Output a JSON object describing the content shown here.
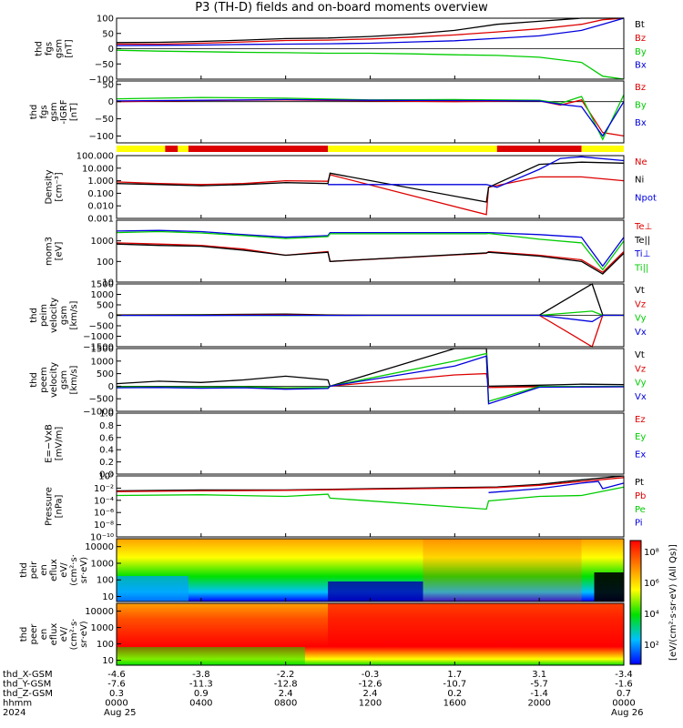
{
  "title": "P3 (TH-D) fields and on-board moments overview",
  "colors": {
    "black": "#000000",
    "red": "#dd0000",
    "green": "#00cc00",
    "blue": "#0000dd",
    "yellow": "#ffff00"
  },
  "chart_data": [
    {
      "type": "line",
      "ylabel": [
        "thd",
        "fgs",
        "gsm",
        "[nT]"
      ],
      "ylim": [
        -100,
        100
      ],
      "yticks": [
        "100",
        "50",
        "0",
        "−50",
        "−100"
      ],
      "legend": [
        {
          "label": "Bt",
          "color": "black"
        },
        {
          "label": "Bz",
          "color": "red"
        },
        {
          "label": "By",
          "color": "green"
        },
        {
          "label": "Bx",
          "color": "blue"
        }
      ],
      "series": [
        {
          "name": "Bt",
          "x": [
            0,
            2,
            4,
            6,
            8,
            10,
            12,
            14,
            16,
            18,
            20,
            22,
            23,
            24
          ],
          "values": [
            20,
            21,
            24,
            28,
            33,
            35,
            40,
            48,
            60,
            80,
            90,
            100,
            100,
            100
          ]
        },
        {
          "name": "Bz",
          "x": [
            0,
            2,
            4,
            6,
            8,
            10,
            12,
            14,
            16,
            18,
            20,
            22,
            23,
            24
          ],
          "values": [
            15,
            15,
            18,
            22,
            27,
            28,
            32,
            38,
            45,
            55,
            65,
            80,
            95,
            100
          ]
        },
        {
          "name": "By",
          "x": [
            0,
            2,
            4,
            6,
            8,
            10,
            12,
            14,
            16,
            18,
            20,
            22,
            23,
            24
          ],
          "values": [
            -5,
            -8,
            -10,
            -12,
            -13,
            -15,
            -15,
            -17,
            -20,
            -22,
            -28,
            -45,
            -90,
            -100
          ]
        },
        {
          "name": "Bx",
          "x": [
            0,
            2,
            4,
            6,
            8,
            10,
            12,
            14,
            16,
            18,
            20,
            22,
            23,
            24
          ],
          "values": [
            10,
            11,
            12,
            14,
            15,
            16,
            18,
            22,
            26,
            34,
            42,
            60,
            80,
            100
          ]
        }
      ]
    },
    {
      "type": "line",
      "ylabel": [
        "thd",
        "fgs",
        "gsm",
        "-IGRF",
        "[nT]"
      ],
      "ylim": [
        -120,
        60
      ],
      "yticks": [
        "50",
        "0",
        "−50",
        "−100"
      ],
      "legend": [
        {
          "label": "Bz",
          "color": "red"
        },
        {
          "label": "By",
          "color": "green"
        },
        {
          "label": "Bx",
          "color": "blue"
        }
      ],
      "series": [
        {
          "name": "Bz",
          "x": [
            0,
            4,
            8,
            12,
            16,
            20,
            21,
            22,
            23,
            24
          ],
          "values": [
            0,
            3,
            5,
            2,
            0,
            2,
            -10,
            5,
            -90,
            -100
          ]
        },
        {
          "name": "By",
          "x": [
            0,
            4,
            8,
            12,
            16,
            20,
            21,
            22,
            23,
            24
          ],
          "values": [
            8,
            12,
            10,
            5,
            6,
            4,
            -5,
            15,
            -110,
            20
          ]
        },
        {
          "name": "Bx",
          "x": [
            0,
            4,
            8,
            12,
            16,
            20,
            21,
            22,
            23,
            24
          ],
          "values": [
            2,
            4,
            6,
            4,
            3,
            2,
            -8,
            -15,
            -100,
            0
          ]
        }
      ]
    },
    {
      "type": "line",
      "ylabel": [
        "Density",
        "[cm⁻³]"
      ],
      "yscale": "log",
      "ylim": [
        0.001,
        100
      ],
      "yticks": [
        "100.000",
        "10.000",
        "1.000",
        "0.100",
        "0.010",
        "0.001"
      ],
      "legend": [
        {
          "label": "Ne",
          "color": "red"
        },
        {
          "label": "Ni",
          "color": "black"
        },
        {
          "label": "Npot",
          "color": "blue"
        }
      ],
      "series": [
        {
          "name": "Ne",
          "x": [
            0,
            2,
            4,
            6,
            8,
            10,
            10.1,
            17.5,
            17.6,
            20,
            22,
            24
          ],
          "values": [
            0.8,
            0.6,
            0.5,
            0.6,
            1.0,
            0.9,
            3,
            0.002,
            0.3,
            2,
            2,
            1
          ]
        },
        {
          "name": "Ni",
          "x": [
            0,
            2,
            4,
            6,
            8,
            10,
            10.1,
            17.5,
            17.6,
            20,
            22,
            24
          ],
          "values": [
            0.6,
            0.5,
            0.4,
            0.5,
            0.7,
            0.6,
            4,
            0.02,
            0.3,
            20,
            30,
            25
          ]
        },
        {
          "name": "Npot",
          "x": [
            10,
            17.5,
            18,
            20,
            21,
            22,
            24
          ],
          "values": [
            0.5,
            0.5,
            0.3,
            8,
            60,
            80,
            40
          ]
        }
      ]
    },
    {
      "type": "line",
      "ylabel": [
        "mom3",
        "[eV]"
      ],
      "yscale": "log",
      "ylim": [
        10,
        10000
      ],
      "yticks": [
        "1000",
        "100",
        "10"
      ],
      "legend": [
        {
          "label": "Te⊥",
          "color": "red"
        },
        {
          "label": "Te||",
          "color": "black"
        },
        {
          "label": "Ti⊥",
          "color": "blue"
        },
        {
          "label": "Ti||",
          "color": "green"
        }
      ],
      "series": [
        {
          "name": "Te⊥",
          "x": [
            0,
            2,
            4,
            6,
            8,
            10,
            10.1,
            17.5,
            17.6,
            20,
            22,
            23,
            24
          ],
          "values": [
            800,
            700,
            600,
            400,
            200,
            300,
            100,
            250,
            300,
            200,
            120,
            30,
            300
          ]
        },
        {
          "name": "Te||",
          "x": [
            0,
            2,
            4,
            6,
            8,
            10,
            10.1,
            17.5,
            17.6,
            20,
            22,
            23,
            24
          ],
          "values": [
            700,
            600,
            550,
            350,
            200,
            280,
            100,
            260,
            280,
            180,
            100,
            25,
            250
          ]
        },
        {
          "name": "Ti⊥",
          "x": [
            0,
            2,
            4,
            6,
            8,
            10,
            10.1,
            17.5,
            17.6,
            20,
            22,
            23,
            24
          ],
          "values": [
            3000,
            3200,
            2800,
            2000,
            1500,
            1800,
            2500,
            2500,
            2500,
            2000,
            1500,
            60,
            1500
          ]
        },
        {
          "name": "Ti||",
          "x": [
            0,
            2,
            4,
            6,
            8,
            10,
            10.1,
            17.5,
            17.6,
            20,
            22,
            23,
            24
          ],
          "values": [
            2500,
            2800,
            2400,
            1800,
            1300,
            1600,
            2200,
            2200,
            2300,
            1200,
            800,
            40,
            1000
          ]
        }
      ]
    },
    {
      "type": "line",
      "ylabel": [
        "thd",
        "peim",
        "velocity",
        "gsm",
        "[km/s]"
      ],
      "ylim": [
        -1500,
        1500
      ],
      "yticks": [
        "1500",
        "1000",
        "500",
        "0",
        "−500",
        "−1000",
        "−1500"
      ],
      "legend": [
        {
          "label": "Vt",
          "color": "black"
        },
        {
          "label": "Vz",
          "color": "red"
        },
        {
          "label": "Vy",
          "color": "green"
        },
        {
          "label": "Vx",
          "color": "blue"
        }
      ],
      "series": [
        {
          "name": "Vt",
          "x": [
            0,
            4,
            8,
            10,
            12,
            16,
            20,
            22.5,
            23,
            24
          ],
          "values": [
            20,
            30,
            60,
            20,
            10,
            10,
            10,
            1500,
            20,
            10
          ]
        },
        {
          "name": "Vz",
          "x": [
            0,
            4,
            8,
            10,
            12,
            16,
            20,
            22.5,
            23,
            24
          ],
          "values": [
            5,
            10,
            20,
            5,
            0,
            0,
            0,
            -1500,
            0,
            0
          ]
        },
        {
          "name": "Vy",
          "x": [
            0,
            4,
            8,
            10,
            12,
            16,
            20,
            22.5,
            23,
            24
          ],
          "values": [
            0,
            5,
            -10,
            0,
            0,
            0,
            0,
            200,
            0,
            0
          ]
        },
        {
          "name": "Vx",
          "x": [
            0,
            4,
            8,
            10,
            12,
            16,
            20,
            22.5,
            23,
            24
          ],
          "values": [
            -5,
            -10,
            0,
            -5,
            0,
            0,
            0,
            -300,
            0,
            0
          ]
        }
      ]
    },
    {
      "type": "line",
      "ylabel": [
        "thd",
        "peem",
        "velocity",
        "gsm",
        "[km/s]"
      ],
      "ylim": [
        -1000,
        1500
      ],
      "yticks": [
        "1500",
        "1000",
        "500",
        "0",
        "−500",
        "−1000"
      ],
      "legend": [
        {
          "label": "Vt",
          "color": "black"
        },
        {
          "label": "Vz",
          "color": "red"
        },
        {
          "label": "Vy",
          "color": "green"
        },
        {
          "label": "Vx",
          "color": "blue"
        }
      ],
      "series": [
        {
          "name": "Vt",
          "x": [
            0,
            2,
            4,
            6,
            8,
            10,
            10.1,
            16,
            17.5,
            17.6,
            20,
            22,
            24
          ],
          "values": [
            100,
            200,
            150,
            250,
            400,
            250,
            0,
            1500,
            1500,
            0,
            40,
            80,
            60
          ]
        },
        {
          "name": "Vz",
          "x": [
            0,
            2,
            4,
            6,
            8,
            10,
            10.1,
            16,
            17.5,
            17.6,
            20,
            22,
            24
          ],
          "values": [
            -50,
            -40,
            -60,
            -50,
            -100,
            -80,
            0,
            450,
            500,
            -50,
            -20,
            -30,
            -20
          ]
        },
        {
          "name": "Vy",
          "x": [
            0,
            2,
            4,
            6,
            8,
            10,
            10.1,
            16,
            17.5,
            17.6,
            20,
            22,
            24
          ],
          "values": [
            -20,
            -30,
            -40,
            -20,
            -60,
            -50,
            0,
            1000,
            1300,
            -600,
            -10,
            -10,
            -10
          ]
        },
        {
          "name": "Vx",
          "x": [
            0,
            2,
            4,
            6,
            8,
            10,
            10.1,
            16,
            17.5,
            17.6,
            20,
            22,
            24
          ],
          "values": [
            -60,
            -50,
            -80,
            -60,
            -120,
            -90,
            0,
            800,
            1200,
            -700,
            -40,
            -30,
            -20
          ]
        }
      ]
    },
    {
      "type": "line",
      "ylabel": [
        "E=−VxB",
        "[mV/m]"
      ],
      "ylim": [
        0,
        1
      ],
      "yticks": [
        "1.0",
        "0.8",
        "0.6",
        "0.4",
        "0.2",
        "0.0"
      ],
      "legend": [
        {
          "label": "Ez",
          "color": "red"
        },
        {
          "label": "Ey",
          "color": "green"
        },
        {
          "label": "Ex",
          "color": "blue"
        }
      ],
      "series": []
    },
    {
      "type": "line",
      "ylabel": [
        "Pressure",
        "[nPa]"
      ],
      "yscale": "log",
      "ylim": [
        1e-10,
        10
      ],
      "yticks": [
        "10⁰",
        "10⁻²",
        "10⁻⁴",
        "10⁻⁶",
        "10⁻⁸",
        "10⁻¹⁰"
      ],
      "legend": [
        {
          "label": "Pt",
          "color": "black"
        },
        {
          "label": "Pb",
          "color": "red"
        },
        {
          "label": "Pe",
          "color": "green"
        },
        {
          "label": "Pi",
          "color": "blue"
        }
      ],
      "series": [
        {
          "name": "Pt",
          "x": [
            0,
            4,
            8,
            12,
            16,
            18,
            20,
            22,
            24
          ],
          "values": [
            0.02,
            0.03,
            0.03,
            0.05,
            0.08,
            0.1,
            0.3,
            2,
            10
          ]
        },
        {
          "name": "Pb",
          "x": [
            0,
            4,
            8,
            12,
            16,
            18,
            20,
            22,
            24
          ],
          "values": [
            0.015,
            0.02,
            0.025,
            0.04,
            0.06,
            0.08,
            0.2,
            1,
            5
          ]
        },
        {
          "name": "Pe",
          "x": [
            0,
            4,
            8,
            10,
            10.1,
            17.5,
            17.6,
            20,
            22,
            24
          ],
          "values": [
            0.003,
            0.004,
            0.002,
            0.005,
            0.001,
            1e-05,
            0.0003,
            0.002,
            0.003,
            0.1
          ]
        },
        {
          "name": "Pi",
          "x": [
            17.6,
            20,
            22,
            22.8,
            23,
            24
          ],
          "values": [
            0.01,
            0.05,
            0.5,
            1,
            0.05,
            0.5
          ]
        }
      ]
    },
    {
      "type": "heatmap",
      "ylabel": [
        "thd",
        "peir",
        "en",
        "eflux",
        "eV/",
        "(cm²·s·",
        "sr·eV)"
      ],
      "yscale": "log",
      "ylim": [
        5,
        30000
      ],
      "yticks": [
        "10000",
        "1000",
        "100",
        "10"
      ]
    },
    {
      "type": "heatmap",
      "ylabel": [
        "thd",
        "peer",
        "en",
        "eflux",
        "eV/",
        "(cm²·s·",
        "sr·eV)"
      ],
      "yscale": "log",
      "ylim": [
        5,
        30000
      ],
      "yticks": [
        "10000",
        "1000",
        "100",
        "10"
      ]
    }
  ],
  "colorbar": {
    "label": "[eV/(cm²·s·sr·eV) (All Qs)]",
    "ticks": [
      "10⁸",
      "10⁶",
      "10⁴",
      "10²"
    ]
  },
  "xaxis": {
    "row_labels": [
      "thd_X-GSM",
      "thd_Y-GSM",
      "thd_Z-GSM",
      "hhmm",
      "2024"
    ],
    "ticks": [
      {
        "hour": 0,
        "vals": [
          "-4.6",
          "-7.6",
          "0.3",
          "0000",
          "Aug 25"
        ]
      },
      {
        "hour": 4,
        "vals": [
          "-3.8",
          "-11.3",
          "0.9",
          "0400",
          ""
        ]
      },
      {
        "hour": 8,
        "vals": [
          "-2.2",
          "-12.8",
          "2.4",
          "0800",
          ""
        ]
      },
      {
        "hour": 12,
        "vals": [
          "-0.3",
          "-12.6",
          "2.4",
          "1200",
          ""
        ]
      },
      {
        "hour": 16,
        "vals": [
          "1.7",
          "-10.7",
          "0.2",
          "1600",
          ""
        ]
      },
      {
        "hour": 20,
        "vals": [
          "3.1",
          "-5.7",
          "-1.4",
          "2000",
          ""
        ]
      },
      {
        "hour": 24,
        "vals": [
          "-3.4",
          "-1.6",
          "0.7",
          "0000",
          "Aug 26"
        ]
      }
    ]
  },
  "mode_bar": [
    {
      "from": 0,
      "to": 2.3,
      "color": "yellow"
    },
    {
      "from": 2.3,
      "to": 2.9,
      "color": "red"
    },
    {
      "from": 2.9,
      "to": 3.4,
      "color": "yellow"
    },
    {
      "from": 3.4,
      "to": 10,
      "color": "red"
    },
    {
      "from": 10,
      "to": 18,
      "color": "yellow"
    },
    {
      "from": 18,
      "to": 22,
      "color": "red"
    },
    {
      "from": 22,
      "to": 24,
      "color": "yellow"
    }
  ]
}
